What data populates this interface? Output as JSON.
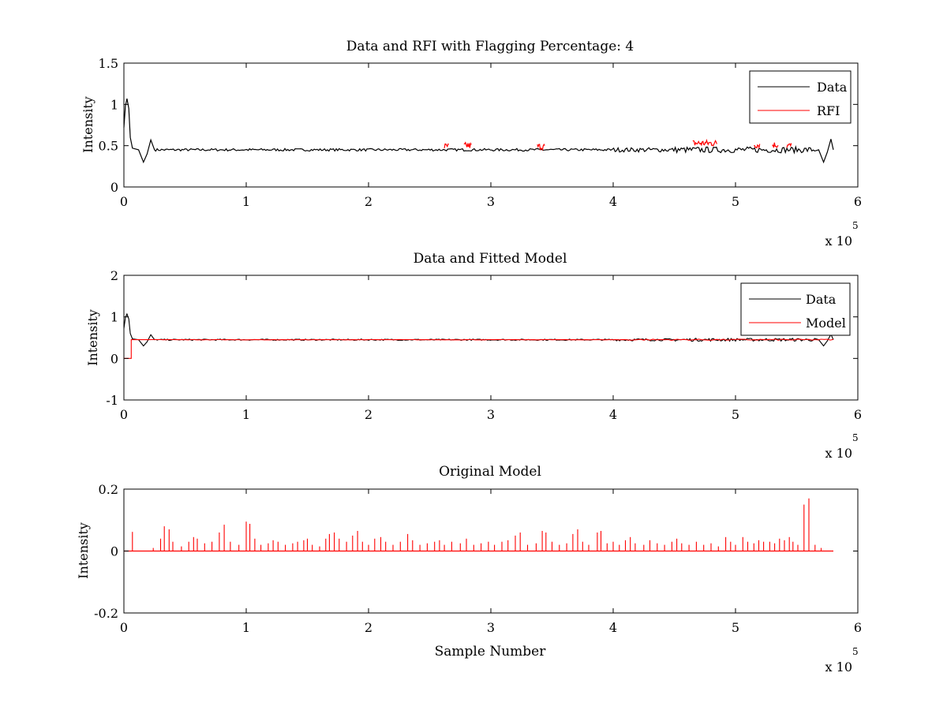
{
  "chart_data": [
    {
      "type": "line",
      "title": "Data and RFI with Flagging Percentage: 4",
      "xlabel": "",
      "ylabel": "Intensity",
      "xlim": [
        0,
        600000
      ],
      "ylim": [
        0,
        1.5
      ],
      "x_ticks": [
        "0",
        "1",
        "2",
        "3",
        "4",
        "5",
        "6"
      ],
      "y_ticks": [
        "0",
        "0.5",
        "1",
        "1.5"
      ],
      "x_exponent": {
        "base": "x 10",
        "power": "5"
      },
      "legend_position": "top-right",
      "series": [
        {
          "name": "Data",
          "color": "#000000",
          "baseline": 0.45,
          "noise": 0.015
        },
        {
          "name": "RFI",
          "color": "#ff0000"
        }
      ],
      "features": {
        "start_peak": {
          "x": 2500,
          "y": 1.07
        },
        "dip_1": {
          "x": 16000,
          "y": 0.3
        },
        "bump_1": {
          "x": 22000,
          "y": 0.57
        },
        "dip_2": {
          "x": 572000,
          "y": 0.3
        },
        "bump_2": {
          "x": 578000,
          "y": 0.58
        },
        "end_x": 580000
      },
      "rfi_segments": [
        {
          "x0": 262000,
          "x1": 266000,
          "y": 0.48
        },
        {
          "x0": 278000,
          "x1": 284000,
          "y": 0.49
        },
        {
          "x0": 338000,
          "x1": 344000,
          "y": 0.48
        },
        {
          "x0": 465000,
          "x1": 485000,
          "y": 0.52
        },
        {
          "x0": 515000,
          "x1": 520000,
          "y": 0.5
        },
        {
          "x0": 530000,
          "x1": 535000,
          "y": 0.5
        },
        {
          "x0": 542000,
          "x1": 546000,
          "y": 0.49
        }
      ]
    },
    {
      "type": "line",
      "title": "Data and Fitted Model",
      "xlabel": "",
      "ylabel": "Intensity",
      "xlim": [
        0,
        600000
      ],
      "ylim": [
        -1,
        2
      ],
      "x_ticks": [
        "0",
        "1",
        "2",
        "3",
        "4",
        "5",
        "6"
      ],
      "y_ticks": [
        "-1",
        "0",
        "1",
        "2"
      ],
      "x_exponent": {
        "base": "x 10",
        "power": "5"
      },
      "legend_position": "top-right",
      "series": [
        {
          "name": "Data",
          "color": "#000000",
          "baseline": 0.45,
          "noise": 0.015
        },
        {
          "name": "Model",
          "color": "#ff0000",
          "start_value": 0.0,
          "step_x": 6000,
          "level": 0.45
        }
      ],
      "features": {
        "start_peak": {
          "x": 2500,
          "y": 1.07
        },
        "dip_1": {
          "x": 16000,
          "y": 0.3
        },
        "bump_1": {
          "x": 22000,
          "y": 0.57
        },
        "dip_2": {
          "x": 572000,
          "y": 0.3
        },
        "bump_2": {
          "x": 578000,
          "y": 0.58
        },
        "end_x": 580000
      }
    },
    {
      "type": "line",
      "title": "Original Model",
      "xlabel": "Sample Number",
      "ylabel": "Intensity",
      "xlim": [
        0,
        600000
      ],
      "ylim": [
        -0.2,
        0.2
      ],
      "x_ticks": [
        "0",
        "1",
        "2",
        "3",
        "4",
        "5",
        "6"
      ],
      "y_ticks": [
        "-0.2",
        "0",
        "0.2"
      ],
      "x_exponent": {
        "base": "x 10",
        "power": "5"
      },
      "series": [
        {
          "name": "",
          "color": "#ff0000",
          "end_x": 580000,
          "spikes": [
            [
              7000,
              0.062
            ],
            [
              24000,
              0.01
            ],
            [
              30000,
              0.04
            ],
            [
              33000,
              0.08
            ],
            [
              37000,
              0.07
            ],
            [
              40000,
              0.03
            ],
            [
              47000,
              0.015
            ],
            [
              53000,
              0.03
            ],
            [
              57000,
              0.045
            ],
            [
              60000,
              0.04
            ],
            [
              66000,
              0.025
            ],
            [
              72000,
              0.03
            ],
            [
              78000,
              0.06
            ],
            [
              82000,
              0.085
            ],
            [
              87000,
              0.03
            ],
            [
              94000,
              0.02
            ],
            [
              100000,
              0.095
            ],
            [
              103000,
              0.088
            ],
            [
              107000,
              0.04
            ],
            [
              112000,
              0.02
            ],
            [
              118000,
              0.025
            ],
            [
              122000,
              0.035
            ],
            [
              126000,
              0.03
            ],
            [
              132000,
              0.02
            ],
            [
              138000,
              0.025
            ],
            [
              142000,
              0.03
            ],
            [
              147000,
              0.035
            ],
            [
              150000,
              0.04
            ],
            [
              154000,
              0.02
            ],
            [
              160000,
              0.015
            ],
            [
              165000,
              0.04
            ],
            [
              168000,
              0.055
            ],
            [
              172000,
              0.06
            ],
            [
              176000,
              0.04
            ],
            [
              182000,
              0.03
            ],
            [
              187000,
              0.05
            ],
            [
              191000,
              0.065
            ],
            [
              195000,
              0.03
            ],
            [
              200000,
              0.02
            ],
            [
              205000,
              0.04
            ],
            [
              210000,
              0.045
            ],
            [
              214000,
              0.03
            ],
            [
              220000,
              0.02
            ],
            [
              226000,
              0.03
            ],
            [
              232000,
              0.055
            ],
            [
              236000,
              0.035
            ],
            [
              242000,
              0.02
            ],
            [
              248000,
              0.025
            ],
            [
              254000,
              0.03
            ],
            [
              258000,
              0.035
            ],
            [
              262000,
              0.02
            ],
            [
              268000,
              0.03
            ],
            [
              275000,
              0.025
            ],
            [
              280000,
              0.04
            ],
            [
              286000,
              0.02
            ],
            [
              292000,
              0.025
            ],
            [
              298000,
              0.03
            ],
            [
              303000,
              0.02
            ],
            [
              309000,
              0.03
            ],
            [
              314000,
              0.035
            ],
            [
              320000,
              0.05
            ],
            [
              324000,
              0.06
            ],
            [
              330000,
              0.02
            ],
            [
              337000,
              0.025
            ],
            [
              342000,
              0.065
            ],
            [
              345000,
              0.06
            ],
            [
              350000,
              0.03
            ],
            [
              356000,
              0.02
            ],
            [
              362000,
              0.025
            ],
            [
              367000,
              0.055
            ],
            [
              371000,
              0.07
            ],
            [
              375000,
              0.03
            ],
            [
              380000,
              0.02
            ],
            [
              387000,
              0.06
            ],
            [
              390000,
              0.065
            ],
            [
              395000,
              0.025
            ],
            [
              400000,
              0.03
            ],
            [
              405000,
              0.02
            ],
            [
              410000,
              0.035
            ],
            [
              414000,
              0.045
            ],
            [
              418000,
              0.025
            ],
            [
              425000,
              0.02
            ],
            [
              430000,
              0.035
            ],
            [
              436000,
              0.025
            ],
            [
              442000,
              0.02
            ],
            [
              448000,
              0.03
            ],
            [
              452000,
              0.04
            ],
            [
              456000,
              0.025
            ],
            [
              462000,
              0.02
            ],
            [
              468000,
              0.03
            ],
            [
              474000,
              0.02
            ],
            [
              480000,
              0.025
            ],
            [
              486000,
              0.015
            ],
            [
              492000,
              0.045
            ],
            [
              496000,
              0.03
            ],
            [
              500000,
              0.02
            ],
            [
              506000,
              0.045
            ],
            [
              510000,
              0.03
            ],
            [
              515000,
              0.025
            ],
            [
              519000,
              0.035
            ],
            [
              523000,
              0.03
            ],
            [
              528000,
              0.03
            ],
            [
              532000,
              0.025
            ],
            [
              536000,
              0.04
            ],
            [
              540000,
              0.035
            ],
            [
              544000,
              0.045
            ],
            [
              547000,
              0.03
            ],
            [
              551000,
              0.02
            ],
            [
              556000,
              0.15
            ],
            [
              560000,
              0.17
            ],
            [
              565000,
              0.02
            ],
            [
              570000,
              0.01
            ]
          ]
        }
      ]
    }
  ]
}
